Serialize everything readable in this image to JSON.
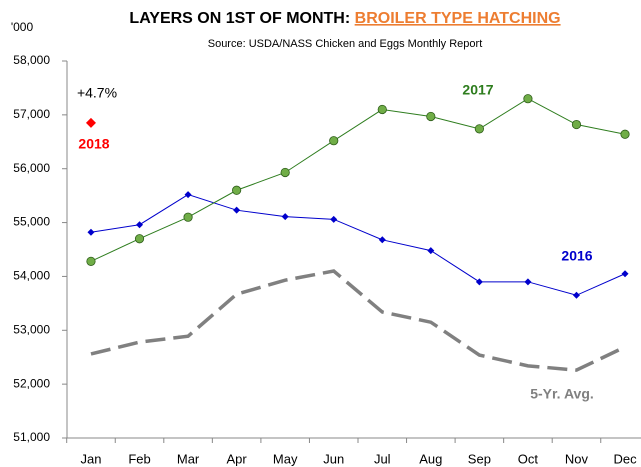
{
  "chart_data": {
    "type": "line",
    "title_parts": [
      "LAYERS ON 1ST OF MONTH:",
      "BROILER TYPE HATCHING"
    ],
    "subtitle": "Source: USDA/NASS Chicken and Eggs Monthly Report",
    "y_unit_label": "'000",
    "annotation": "+4.7%",
    "categories": [
      "Jan",
      "Feb",
      "Mar",
      "Apr",
      "May",
      "Jun",
      "Jul",
      "Aug",
      "Sep",
      "Oct",
      "Nov",
      "Dec"
    ],
    "series": [
      {
        "name": "2016",
        "color": "#0000cc",
        "marker": "diamond",
        "dashed": false,
        "values": [
          54820,
          54960,
          55520,
          55230,
          55110,
          55060,
          54680,
          54480,
          53900,
          53900,
          53650,
          54050
        ]
      },
      {
        "name": "2017",
        "color": "#2e7d1e",
        "marker": "circle",
        "dashed": false,
        "values": [
          54280,
          54700,
          55100,
          55600,
          55930,
          56520,
          57100,
          56970,
          56740,
          57300,
          56820,
          56640
        ]
      },
      {
        "name": "5-Yr. Avg.",
        "color": "#808080",
        "marker": "none",
        "dashed": true,
        "values": [
          52560,
          52780,
          52890,
          53670,
          53930,
          54100,
          53340,
          53150,
          52540,
          52340,
          52260,
          52690
        ]
      },
      {
        "name": "2018",
        "color": "#ff0000",
        "marker": "diamond",
        "dashed": false,
        "values": [
          56850,
          null,
          null,
          null,
          null,
          null,
          null,
          null,
          null,
          null,
          null,
          null
        ]
      }
    ],
    "ylim": [
      51000,
      58000
    ],
    "yticks": [
      {
        "value": 51000,
        "label": "51,000"
      },
      {
        "value": 52000,
        "label": "52,000"
      },
      {
        "value": 53000,
        "label": "53,000"
      },
      {
        "value": 54000,
        "label": "54,000"
      },
      {
        "value": 55000,
        "label": "55,000"
      },
      {
        "value": 56000,
        "label": "56,000"
      },
      {
        "value": 57000,
        "label": "57,000"
      },
      {
        "value": 58000,
        "label": "58,000"
      }
    ],
    "grid": false
  }
}
